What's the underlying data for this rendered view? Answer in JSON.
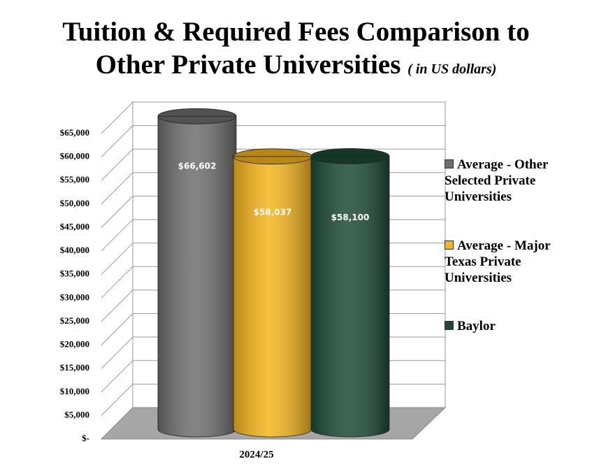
{
  "chart_data": {
    "type": "bar3d",
    "title": "Tuition & Required Fees Comparison to Other Private Universities",
    "subtitle": "( in US dollars)",
    "categories": [
      "2024/25"
    ],
    "series": [
      {
        "name": "Average - Other Selected Private Universities",
        "color": "#6e6e6e",
        "values": [
          66602
        ],
        "value_labels": [
          "$66,602"
        ]
      },
      {
        "name": "Average - Major Texas Private Universities",
        "color": "#f5b51c",
        "values": [
          58037
        ],
        "value_labels": [
          "$58,037"
        ]
      },
      {
        "name": "Baylor",
        "color": "#1c4a36",
        "values": [
          58100
        ],
        "value_labels": [
          "$58,100"
        ]
      }
    ],
    "ylim": [
      0,
      65000
    ],
    "yticks": [
      {
        "value": 0,
        "label": "$-"
      },
      {
        "value": 5000,
        "label": "$5,000"
      },
      {
        "value": 10000,
        "label": "$10,000"
      },
      {
        "value": 15000,
        "label": "$15,000"
      },
      {
        "value": 20000,
        "label": "$20,000"
      },
      {
        "value": 25000,
        "label": "$25,000"
      },
      {
        "value": 30000,
        "label": "$30,000"
      },
      {
        "value": 35000,
        "label": "$35,000"
      },
      {
        "value": 40000,
        "label": "$40,000"
      },
      {
        "value": 45000,
        "label": "$45,000"
      },
      {
        "value": 50000,
        "label": "$50,000"
      },
      {
        "value": 55000,
        "label": "$55,000"
      },
      {
        "value": 60000,
        "label": "$60,000"
      },
      {
        "value": 65000,
        "label": "$65,000"
      }
    ],
    "grid": true,
    "legend": "right"
  }
}
